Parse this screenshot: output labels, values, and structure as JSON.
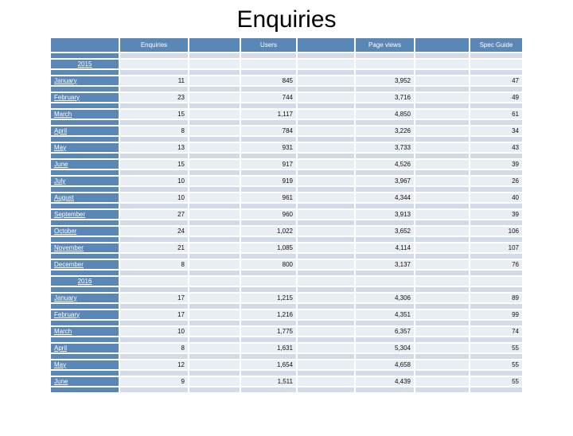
{
  "title": "Enquiries",
  "colors": {
    "header_blue": "#5b87b7",
    "row_light": "#e9edf4",
    "row_separator": "#d4dbe8"
  },
  "table": {
    "headers": [
      "",
      "Enquiries",
      "",
      "Users",
      "",
      "Page views",
      "",
      "Spec Guide"
    ],
    "sections": [
      {
        "year": "2015",
        "rows": [
          {
            "month": "January",
            "enquiries": "11",
            "users": "845",
            "page_views": "3,952",
            "spec_guide": "47"
          },
          {
            "month": "February",
            "enquiries": "23",
            "users": "744",
            "page_views": "3,716",
            "spec_guide": "49"
          },
          {
            "month": "March",
            "enquiries": "15",
            "users": "1,117",
            "page_views": "4,850",
            "spec_guide": "61"
          },
          {
            "month": "April",
            "enquiries": "8",
            "users": "784",
            "page_views": "3,226",
            "spec_guide": "34"
          },
          {
            "month": "May",
            "enquiries": "13",
            "users": "931",
            "page_views": "3,733",
            "spec_guide": "43"
          },
          {
            "month": "June",
            "enquiries": "15",
            "users": "917",
            "page_views": "4,526",
            "spec_guide": "39"
          },
          {
            "month": "July",
            "enquiries": "10",
            "users": "919",
            "page_views": "3,967",
            "spec_guide": "26"
          },
          {
            "month": "August",
            "enquiries": "10",
            "users": "961",
            "page_views": "4,344",
            "spec_guide": "40"
          },
          {
            "month": "September",
            "enquiries": "27",
            "users": "960",
            "page_views": "3,913",
            "spec_guide": "39"
          },
          {
            "month": "October",
            "enquiries": "24",
            "users": "1,022",
            "page_views": "3,652",
            "spec_guide": "106"
          },
          {
            "month": "November",
            "enquiries": "21",
            "users": "1,085",
            "page_views": "4,114",
            "spec_guide": "107"
          },
          {
            "month": "December",
            "enquiries": "8",
            "users": "800",
            "page_views": "3,137",
            "spec_guide": "76"
          }
        ]
      },
      {
        "year": "2016",
        "rows": [
          {
            "month": "January",
            "enquiries": "17",
            "users": "1,215",
            "page_views": "4,306",
            "spec_guide": "89"
          },
          {
            "month": "February",
            "enquiries": "17",
            "users": "1,216",
            "page_views": "4,351",
            "spec_guide": "99"
          },
          {
            "month": "March",
            "enquiries": "10",
            "users": "1,775",
            "page_views": "6,357",
            "spec_guide": "74"
          },
          {
            "month": "April",
            "enquiries": "8",
            "users": "1,631",
            "page_views": "5,304",
            "spec_guide": "55"
          },
          {
            "month": "May",
            "enquiries": "12",
            "users": "1,654",
            "page_views": "4,658",
            "spec_guide": "55"
          },
          {
            "month": "June",
            "enquiries": "9",
            "users": "1,511",
            "page_views": "4,439",
            "spec_guide": "55"
          }
        ]
      }
    ]
  }
}
